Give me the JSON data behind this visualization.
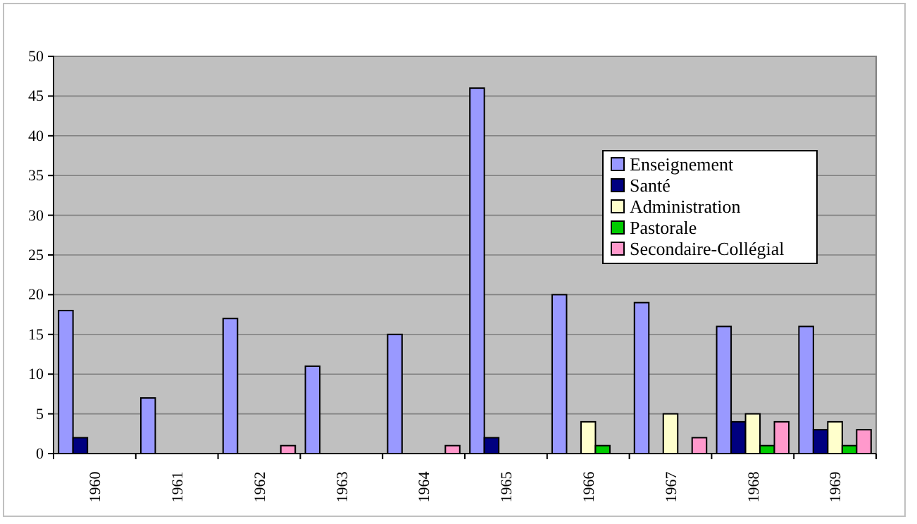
{
  "chart_data": {
    "type": "bar",
    "categories": [
      "1960",
      "1961",
      "1962",
      "1963",
      "1964",
      "1965",
      "1966",
      "1967",
      "1968",
      "1969"
    ],
    "series": [
      {
        "name": "Enseignement",
        "color": "#9999ff",
        "values": [
          18,
          7,
          17,
          11,
          15,
          46,
          20,
          19,
          16,
          16
        ]
      },
      {
        "name": "Santé",
        "color": "#000080",
        "values": [
          2,
          null,
          null,
          null,
          null,
          2,
          null,
          null,
          4,
          3
        ]
      },
      {
        "name": "Administration",
        "color": "#ffffcc",
        "values": [
          null,
          null,
          null,
          null,
          null,
          null,
          4,
          5,
          5,
          4
        ]
      },
      {
        "name": "Pastorale",
        "color": "#00cc00",
        "values": [
          null,
          null,
          null,
          null,
          null,
          null,
          1,
          null,
          1,
          1
        ]
      },
      {
        "name": "Secondaire-Collégial",
        "color": "#ff99cc",
        "values": [
          null,
          null,
          1,
          null,
          1,
          null,
          null,
          2,
          4,
          3
        ]
      }
    ],
    "ylim": [
      0,
      50
    ],
    "yticks": [
      0,
      5,
      10,
      15,
      20,
      25,
      30,
      35,
      40,
      45,
      50
    ],
    "grid": "y",
    "legend": "right"
  }
}
